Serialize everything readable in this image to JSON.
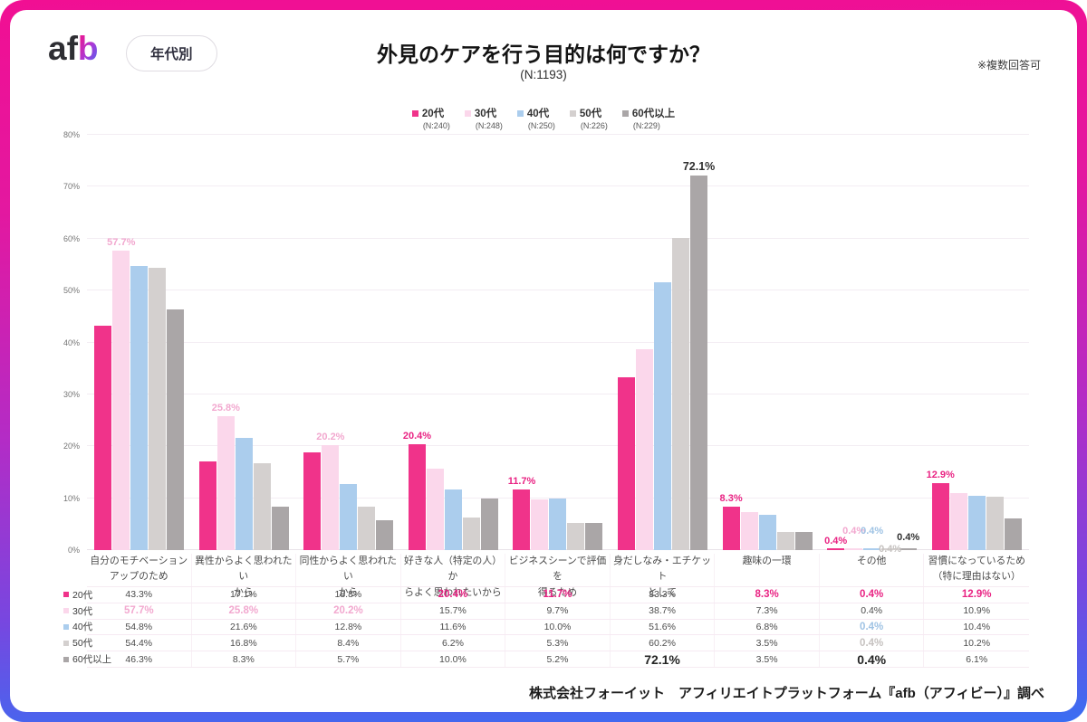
{
  "header": {
    "logo": {
      "text_main": "af",
      "text_accent": "b"
    },
    "badge_label": "年代別",
    "title": "外見のケアを行う目的は何ですか？",
    "sample_label": "(N:1193)",
    "note": "※複数回答可"
  },
  "legend": {
    "items": [
      {
        "label": "20代",
        "n": "(N:240)",
        "color": "#f0338a"
      },
      {
        "label": "30代",
        "n": "(N:248)",
        "color": "#fbd7eb"
      },
      {
        "label": "40代",
        "n": "(N:250)",
        "color": "#abcded"
      },
      {
        "label": "50代",
        "n": "(N:226)",
        "color": "#d4d0cf"
      },
      {
        "label": "60代以上",
        "n": "(N:229)",
        "color": "#aaa6a7"
      }
    ]
  },
  "chart_data": {
    "type": "bar",
    "title": "外見のケアを行う目的は何ですか？",
    "subtitle": "(N:1193)",
    "xlabel": "",
    "ylabel": "",
    "ylim": [
      0,
      80
    ],
    "yticks": [
      "0%",
      "10%",
      "20%",
      "30%",
      "40%",
      "50%",
      "60%",
      "70%",
      "80%"
    ],
    "grid": true,
    "legend_position": "top",
    "categories": [
      [
        "自分のモチベーション",
        "アップのため"
      ],
      [
        "異性からよく思われたい",
        "から"
      ],
      [
        "同性からよく思われたい",
        "から"
      ],
      [
        "好きな人（特定の人）か",
        "らよく思われたいから"
      ],
      [
        "ビジネスシーンで評価を",
        "得るため"
      ],
      [
        "身だしなみ・エチケット",
        "として"
      ],
      [
        "趣味の一環"
      ],
      [
        "その他"
      ],
      [
        "習慣になっているため",
        "（特に理由はない）"
      ]
    ],
    "series": [
      {
        "name": "20代",
        "color": "#f0338a",
        "label_color": "#e92383",
        "values": [
          43.3,
          17.1,
          18.8,
          20.4,
          11.7,
          33.3,
          8.3,
          0.4,
          12.9
        ]
      },
      {
        "name": "30代",
        "color": "#fbd7eb",
        "label_color": "#f2a8cf",
        "values": [
          57.7,
          25.8,
          20.2,
          15.7,
          9.7,
          38.7,
          7.3,
          0.4,
          10.9
        ]
      },
      {
        "name": "40代",
        "color": "#abcded",
        "label_color": "#9fc3e4",
        "values": [
          54.8,
          21.6,
          12.8,
          11.6,
          10.0,
          51.6,
          6.8,
          0.4,
          10.4
        ]
      },
      {
        "name": "50代",
        "color": "#d4d0cf",
        "label_color": "#c6c2c0",
        "values": [
          54.4,
          16.8,
          8.4,
          6.2,
          5.3,
          60.2,
          3.5,
          0.4,
          10.2
        ]
      },
      {
        "name": "60代以上",
        "color": "#aaa6a7",
        "label_color": "#2e2e2e",
        "values": [
          46.3,
          8.3,
          5.7,
          10.0,
          5.2,
          72.1,
          3.5,
          0.4,
          6.1
        ]
      }
    ],
    "bar_labels": [
      {
        "category": 0,
        "series": 1,
        "text": "57.7%"
      },
      {
        "category": 1,
        "series": 1,
        "text": "25.8%"
      },
      {
        "category": 2,
        "series": 1,
        "text": "20.2%"
      },
      {
        "category": 3,
        "series": 0,
        "text": "20.4%"
      },
      {
        "category": 4,
        "series": 0,
        "text": "11.7%"
      },
      {
        "category": 5,
        "series": 4,
        "text": "72.1%",
        "emphasis": true
      },
      {
        "category": 6,
        "series": 0,
        "text": "8.3%"
      },
      {
        "category": 7,
        "series": 0,
        "text": "0.4%"
      },
      {
        "category": 7,
        "series": 1,
        "text": "0.4%"
      },
      {
        "category": 7,
        "series": 2,
        "text": "0.4%"
      },
      {
        "category": 7,
        "series": 3,
        "text": "0.4%"
      },
      {
        "category": 7,
        "series": 4,
        "text": "0.4%"
      },
      {
        "category": 8,
        "series": 0,
        "text": "12.9%"
      }
    ]
  },
  "table": {
    "rows": [
      {
        "label": "20代",
        "color": "#f0338a",
        "highlight_color": "#e92383",
        "values": [
          "43.3%",
          "17.1%",
          "18.8%",
          "20.4%",
          "11.7%",
          "33.3%",
          "8.3%",
          "0.4%",
          "12.9%"
        ],
        "highlight_cols": [
          3,
          4,
          6,
          7,
          8
        ],
        "big_cols": []
      },
      {
        "label": "30代",
        "color": "#fbd7eb",
        "highlight_color": "#f2a8cf",
        "values": [
          "57.7%",
          "25.8%",
          "20.2%",
          "15.7%",
          "9.7%",
          "38.7%",
          "7.3%",
          "0.4%",
          "10.9%"
        ],
        "highlight_cols": [
          0,
          1,
          2
        ],
        "big_cols": []
      },
      {
        "label": "40代",
        "color": "#abcded",
        "highlight_color": "#9fc3e4",
        "values": [
          "54.8%",
          "21.6%",
          "12.8%",
          "11.6%",
          "10.0%",
          "51.6%",
          "6.8%",
          "0.4%",
          "10.4%"
        ],
        "highlight_cols": [
          7
        ],
        "big_cols": []
      },
      {
        "label": "50代",
        "color": "#d4d0cf",
        "highlight_color": "#c6c2c0",
        "values": [
          "54.4%",
          "16.8%",
          "8.4%",
          "6.2%",
          "5.3%",
          "60.2%",
          "3.5%",
          "0.4%",
          "10.2%"
        ],
        "highlight_cols": [
          7
        ],
        "big_cols": []
      },
      {
        "label": "60代以上",
        "color": "#aaa6a7",
        "highlight_color": "#252525",
        "values": [
          "46.3%",
          "8.3%",
          "5.7%",
          "10.0%",
          "5.2%",
          "72.1%",
          "3.5%",
          "0.4%",
          "6.1%"
        ],
        "highlight_cols": [
          5,
          7
        ],
        "big_cols": [
          5,
          7
        ]
      }
    ]
  },
  "footer": {
    "source": "株式会社フォーイット　アフィリエイトプラットフォーム『afb（アフィビー）』調べ"
  }
}
